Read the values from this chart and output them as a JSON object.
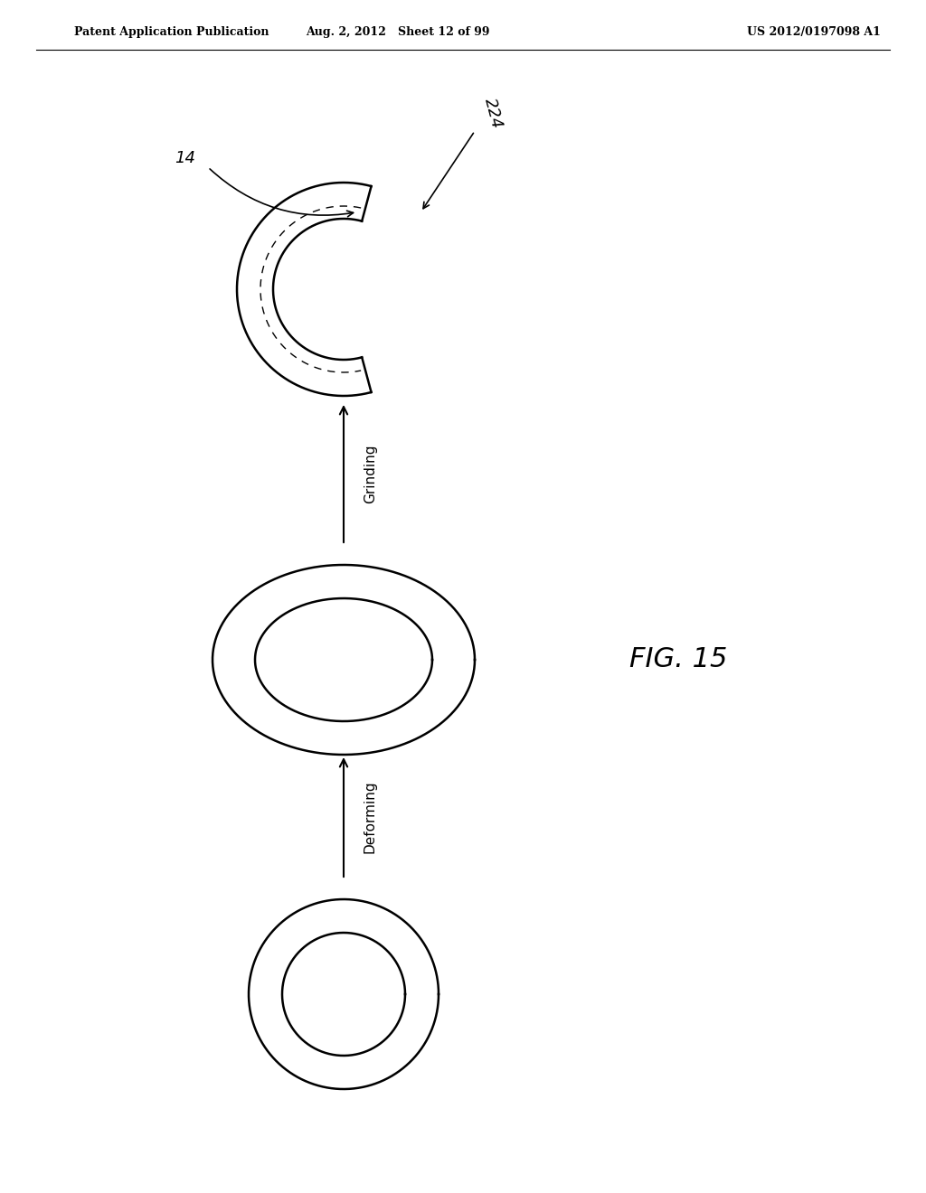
{
  "header_left": "Patent Application Publication",
  "header_mid": "Aug. 2, 2012   Sheet 12 of 99",
  "header_right": "US 2012/0197098 A1",
  "fig_label": "FIG. 15",
  "arrow1_label": "Deforming",
  "arrow2_label": "Grinding",
  "label_14": "14",
  "label_224": "224",
  "bg_color": "#ffffff",
  "line_color": "#000000",
  "figw": 10.24,
  "figh": 13.2,
  "dpi": 100
}
